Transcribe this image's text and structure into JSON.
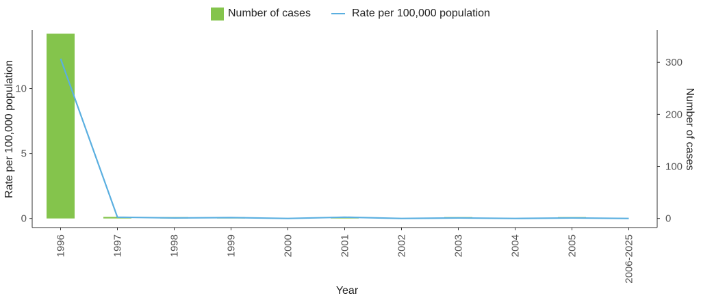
{
  "chart_data": {
    "type": "bar+line",
    "categories": [
      "1996",
      "1997",
      "1998",
      "1999",
      "2000",
      "2001",
      "2002",
      "2003",
      "2004",
      "2005",
      "2006-2025"
    ],
    "series": [
      {
        "name": "Number of cases",
        "kind": "bar",
        "axis": "right",
        "color": "#84c44c",
        "values": [
          355,
          3,
          1,
          2,
          0,
          3,
          0,
          1,
          0,
          1,
          0
        ]
      },
      {
        "name": "Rate per 100,000 population",
        "kind": "line",
        "axis": "left",
        "color": "#5aafe0",
        "values": [
          12.3,
          0.1,
          0.04,
          0.07,
          0.0,
          0.1,
          0.0,
          0.04,
          0.0,
          0.04,
          0.0
        ]
      }
    ],
    "xlabel": "Year",
    "ylabel": "Rate per 100,000 population",
    "y2label": "Number of cases",
    "ylim": [
      -0.7,
      14.5
    ],
    "y2lim": [
      -17.5,
      362
    ],
    "yticks": [
      0,
      5,
      10
    ],
    "y2ticks": [
      0,
      100,
      200,
      300
    ],
    "grid": false,
    "legend_position": "top-center"
  }
}
